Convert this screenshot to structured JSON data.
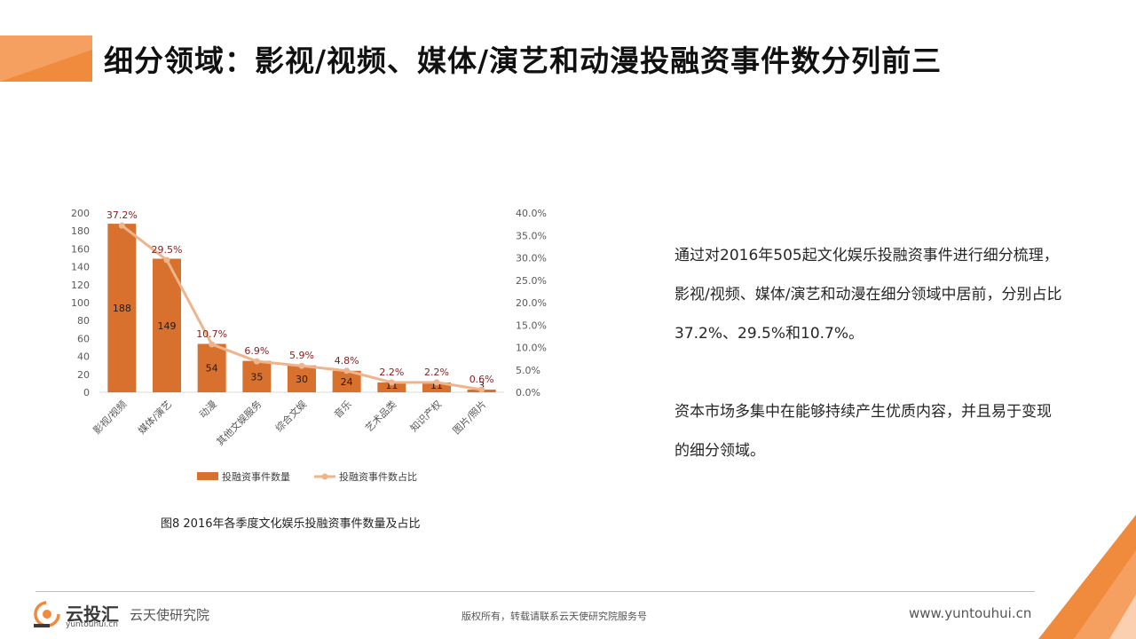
{
  "page": {
    "title": "细分领域：影视/视频、媒体/演艺和动漫投融资事件数分列前三"
  },
  "chart_data": {
    "type": "bar",
    "categories": [
      "影视/视频",
      "媒体/演艺",
      "动漫",
      "其他文娱服务",
      "综合文娱",
      "音乐",
      "艺术品类",
      "知识产权",
      "图片/照片"
    ],
    "series": [
      {
        "name": "投融资事件数量",
        "type": "bar",
        "axis": "left",
        "values": [
          188,
          149,
          54,
          35,
          30,
          24,
          11,
          11,
          3
        ],
        "labels": [
          "188",
          "149",
          "54",
          "35",
          "30",
          "24",
          "11",
          "11",
          "3"
        ]
      },
      {
        "name": "投融资事件数占比",
        "type": "line",
        "axis": "right",
        "values": [
          37.2,
          29.5,
          10.7,
          6.9,
          5.9,
          4.8,
          2.2,
          2.2,
          0.6
        ],
        "labels": [
          "37.2%",
          "29.5%",
          "10.7%",
          "6.9%",
          "5.9%",
          "4.8%",
          "2.2%",
          "2.2%",
          "0.6%"
        ]
      }
    ],
    "ylim": [
      0,
      200
    ],
    "y_ticks": [
      "0",
      "20",
      "40",
      "60",
      "80",
      "100",
      "120",
      "140",
      "160",
      "180",
      "200"
    ],
    "y2lim": [
      0,
      40
    ],
    "y2_ticks": [
      "0.0%",
      "5.0%",
      "10.0%",
      "15.0%",
      "20.0%",
      "25.0%",
      "30.0%",
      "35.0%",
      "40.0%"
    ],
    "legend_position": "bottom",
    "caption": "图8  2016年各季度文化娱乐投融资事件数量及占比",
    "colors": {
      "bar": "#D8702E",
      "line": "#F0B48C",
      "percent_label": "#8B1A1A",
      "tick": "#595959"
    }
  },
  "description": {
    "paragraph1": "通过对2016年505起文化娱乐投融资事件进行细分梳理，影视/视频、媒体/演艺和动漫在细分领域中居前，分别占比37.2%、29.5%和10.7%。",
    "paragraph2": "资本市场多集中在能够持续产生优质内容，并且易于变现的细分领域。"
  },
  "footer": {
    "brand": "云投汇",
    "domain": "yuntouhui.cn",
    "institute": "云天使研究院",
    "copyright": "版权所有，转载请联系云天使研究院服务号",
    "url": "www.yuntouhui.cn"
  },
  "theme": {
    "accent": "#F08A3C"
  }
}
